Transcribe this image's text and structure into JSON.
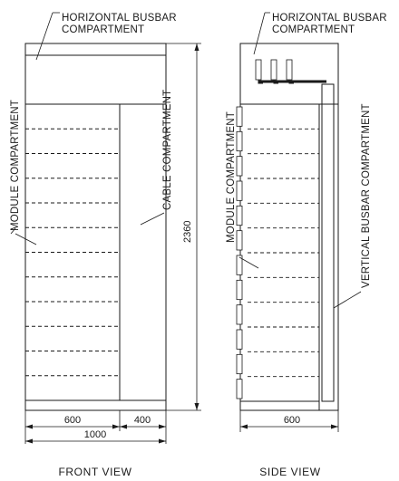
{
  "colors": {
    "busbar_fill": "#bde4ef",
    "module_fill": "#fdf3e6",
    "cable_fill": "#fbd9b0",
    "vertical_busbar_fill": "#e0605a",
    "copper_fill": "#c0564e",
    "line": "#1a1a1a"
  },
  "front_view": {
    "caption": "FRONT VIEW",
    "horizontal_busbar_label": [
      "HORIZONTAL BUSBAR",
      "COMPARTMENT"
    ],
    "module_label": "MODULE COMPARTMENT",
    "cable_label": "CABLE COMPARTMENT",
    "height_dim": "2360",
    "width_module_dim": "600",
    "width_cable_dim": "400",
    "width_total_dim": "1000",
    "module_rows": 12
  },
  "side_view": {
    "caption": "SIDE VIEW",
    "horizontal_busbar_label": [
      "HORIZONTAL BUSBAR",
      "COMPARTMENT"
    ],
    "module_label": "MODULE COMPARTMENT",
    "vertical_busbar_label": "VERTICAL BUSBAR COMPARTMENT",
    "depth_dim": "600",
    "module_rows": 12
  }
}
